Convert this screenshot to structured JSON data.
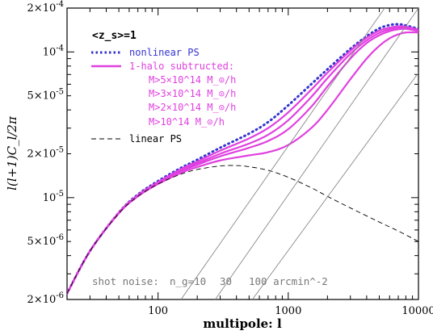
{
  "chart_data": {
    "type": "line",
    "title": "",
    "xlabel": "multipole: l",
    "ylabel": "l(l+1)C_l/2π",
    "xscale": "log",
    "yscale": "log",
    "xlim": [
      20,
      10000
    ],
    "ylim": [
      2e-06,
      0.0002
    ],
    "grid": false,
    "x_tick_labels": [
      "100",
      "1000",
      "10000"
    ],
    "y_tick_labels": [
      "2×10^-6",
      "5×10^-6",
      "10^-5",
      "2×10^-5",
      "5×10^-5",
      "10^-4",
      "2×10^-4"
    ],
    "z_label": "<z_s>=1",
    "legend": {
      "placement": "top-left",
      "entries": [
        {
          "label": "nonlinear PS",
          "color": "#3434d0",
          "style": "dotted"
        },
        {
          "label": "1-halo subtructed:",
          "color": "#e040e0",
          "style": "solid",
          "sub_labels": [
            "M>5×10^14 M_⊙/h",
            "M>3×10^14 M_⊙/h",
            "M>2×10^14 M_⊙/h",
            "M>10^14 M_⊙/h"
          ]
        },
        {
          "label": "linear PS",
          "color": "#000000",
          "style": "dashed"
        }
      ]
    },
    "shot_noise_annotation": {
      "prefix": "shot noise:",
      "n_label": "n_g=10",
      "value_2": "30",
      "value_3": "100 arcmin^-2",
      "line_color": "#888888"
    },
    "series": [
      {
        "name": "nonlinear PS",
        "color": "#3434d0",
        "style": "dotted",
        "x": [
          20,
          30,
          50,
          70,
          100,
          150,
          200,
          300,
          500,
          700,
          1000,
          1500,
          2000,
          3000,
          4000,
          5000,
          6000,
          7000,
          8000,
          10000
        ],
        "y": [
          2.2e-06,
          4.3e-06,
          7.9e-06,
          1.05e-05,
          1.3e-05,
          1.6e-05,
          1.82e-05,
          2.2e-05,
          2.75e-05,
          3.3e-05,
          4.3e-05,
          6e-05,
          7.6e-05,
          0.000105,
          0.000128,
          0.000145,
          0.000153,
          0.000155,
          0.000152,
          0.000144
        ]
      },
      {
        "name": "M>5×10^14 M_⊙/h",
        "color": "#e040e0",
        "style": "solid",
        "x": [
          20,
          30,
          50,
          70,
          100,
          150,
          200,
          300,
          500,
          700,
          1000,
          1500,
          2000,
          3000,
          4000,
          5000,
          6000,
          7000,
          8000,
          10000
        ],
        "y": [
          2.2e-06,
          4.3e-06,
          7.9e-06,
          1.04e-05,
          1.28e-05,
          1.57e-05,
          1.77e-05,
          2.1e-05,
          2.55e-05,
          3e-05,
          3.85e-05,
          5.5e-05,
          7.2e-05,
          0.000102,
          0.000125,
          0.00014,
          0.000147,
          0.00015,
          0.000149,
          0.000142
        ]
      },
      {
        "name": "M>3×10^14 M_⊙/h",
        "color": "#e040e0",
        "style": "solid",
        "x": [
          20,
          30,
          50,
          70,
          100,
          150,
          200,
          300,
          500,
          700,
          1000,
          1500,
          2000,
          3000,
          4000,
          5000,
          6000,
          7000,
          8000,
          10000
        ],
        "y": [
          2.2e-06,
          4.3e-06,
          7.9e-06,
          1.03e-05,
          1.27e-05,
          1.54e-05,
          1.72e-05,
          2e-05,
          2.35e-05,
          2.7e-05,
          3.4e-05,
          4.9e-05,
          6.6e-05,
          9.7e-05,
          0.00012,
          0.000135,
          0.000143,
          0.000146,
          0.000146,
          0.00014
        ]
      },
      {
        "name": "M>2×10^14 M_⊙/h",
        "color": "#e040e0",
        "style": "solid",
        "x": [
          20,
          30,
          50,
          70,
          100,
          150,
          200,
          300,
          500,
          700,
          1000,
          1500,
          2000,
          3000,
          4000,
          5000,
          6000,
          7000,
          8000,
          10000
        ],
        "y": [
          2.2e-06,
          4.3e-06,
          7.85e-06,
          1.03e-05,
          1.26e-05,
          1.52e-05,
          1.68e-05,
          1.92e-05,
          2.2e-05,
          2.45e-05,
          2.95e-05,
          4.2e-05,
          5.8e-05,
          9e-05,
          0.000115,
          0.00013,
          0.000139,
          0.000143,
          0.000144,
          0.000139
        ]
      },
      {
        "name": "M>10^14 M_⊙/h",
        "color": "#e040e0",
        "style": "solid",
        "x": [
          20,
          30,
          50,
          70,
          100,
          150,
          200,
          300,
          500,
          700,
          1000,
          1500,
          2000,
          3000,
          4000,
          5000,
          6000,
          7000,
          8000,
          10000
        ],
        "y": [
          2.2e-06,
          4.3e-06,
          7.8e-06,
          1.02e-05,
          1.24e-05,
          1.48e-05,
          1.62e-05,
          1.8e-05,
          1.95e-05,
          2.05e-05,
          2.3e-05,
          3e-05,
          4e-05,
          6.5e-05,
          9e-05,
          0.00011,
          0.000124,
          0.000132,
          0.000136,
          0.000136
        ]
      },
      {
        "name": "linear PS",
        "color": "#000000",
        "style": "dashed",
        "x": [
          20,
          30,
          50,
          70,
          100,
          150,
          200,
          300,
          400,
          500,
          700,
          1000,
          1500,
          2000,
          3000,
          5000,
          7000,
          10000
        ],
        "y": [
          2.2e-06,
          4.3e-06,
          7.8e-06,
          1.02e-05,
          1.24e-05,
          1.45e-05,
          1.56e-05,
          1.65e-05,
          1.66e-05,
          1.63e-05,
          1.54e-05,
          1.38e-05,
          1.17e-05,
          1.02e-05,
          8.5e-06,
          6.8e-06,
          5.9e-06,
          5e-06
        ]
      },
      {
        "name": "",
        "color": "#888888",
        "style": "solid",
        "x": [
          150,
          5500
        ],
        "y": [
          2e-06,
          0.0002
        ]
      },
      {
        "name": "",
        "color": "#888888",
        "style": "solid",
        "x": [
          275,
          10000
        ],
        "y": [
          2e-06,
          0.0002
        ]
      },
      {
        "name": "",
        "color": "#888888",
        "style": "solid",
        "x": [
          530,
          10000
        ],
        "y": [
          2e-06,
          7.2e-05
        ]
      }
    ]
  }
}
